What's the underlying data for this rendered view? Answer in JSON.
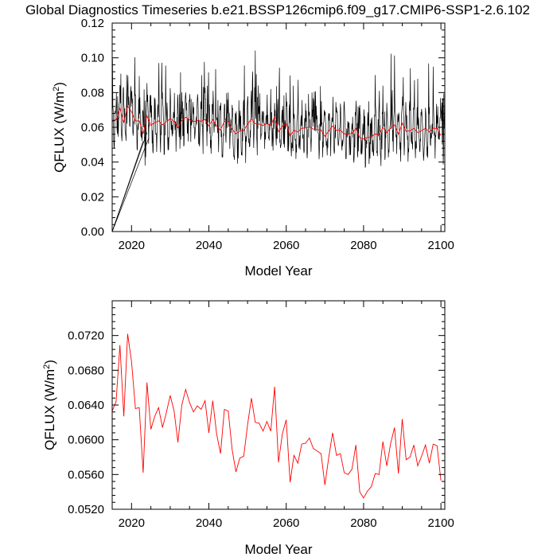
{
  "chart_data": {
    "title": "Global Diagnostics Timeseries b.e21.BSSP126cmip6.f09_g17.CMIP6-SSP1-2.6.102",
    "panels": [
      {
        "type": "line",
        "xlabel": "Model Year",
        "ylabel_main": "QFLUX (W/m",
        "ylabel_sup": "2",
        "ylabel_close": ")",
        "xlim": [
          2015,
          2101
        ],
        "ylim": [
          0.0,
          0.12
        ],
        "xticks": [
          2020,
          2040,
          2060,
          2080,
          2100
        ],
        "xtick_labels": [
          "2020",
          "2040",
          "2060",
          "2080",
          "2100"
        ],
        "yticks": [
          0.0,
          0.02,
          0.04,
          0.06,
          0.08,
          0.1,
          0.12
        ],
        "ytick_labels": [
          "0.00",
          "0.02",
          "0.04",
          "0.06",
          "0.08",
          "0.10",
          "0.12"
        ],
        "series": [
          {
            "role": "monthly",
            "color": "#000000",
            "monthly_mean_range": [
              0.034,
              0.106
            ],
            "note_artifact": "spurious lines from (2015, 0.0) to early-2020s values"
          },
          {
            "role": "annual",
            "color": "#ff0000"
          }
        ]
      },
      {
        "type": "line",
        "xlabel": "Model Year",
        "ylabel_main": "QFLUX (W/m",
        "ylabel_sup": "2",
        "ylabel_close": ")",
        "xlim": [
          2015,
          2101
        ],
        "ylim": [
          0.052,
          0.076
        ],
        "xticks": [
          2020,
          2040,
          2060,
          2080,
          2100
        ],
        "xtick_labels": [
          "2020",
          "2040",
          "2060",
          "2080",
          "2100"
        ],
        "yticks": [
          0.052,
          0.056,
          0.06,
          0.064,
          0.068,
          0.072
        ],
        "ytick_labels": [
          "0.0520",
          "0.0560",
          "0.0600",
          "0.0640",
          "0.0680",
          "0.0720"
        ],
        "series": [
          {
            "role": "annual",
            "color": "#ff0000",
            "x": [
              2015,
              2016,
              2017,
              2018,
              2019,
              2020,
              2021,
              2022,
              2023,
              2024,
              2025,
              2026,
              2027,
              2028,
              2029,
              2030,
              2031,
              2032,
              2033,
              2034,
              2035,
              2036,
              2037,
              2038,
              2039,
              2040,
              2041,
              2042,
              2043,
              2044,
              2045,
              2046,
              2047,
              2048,
              2049,
              2050,
              2051,
              2052,
              2053,
              2054,
              2055,
              2056,
              2057,
              2058,
              2059,
              2060,
              2061,
              2062,
              2063,
              2064,
              2065,
              2066,
              2067,
              2068,
              2069,
              2070,
              2071,
              2072,
              2073,
              2074,
              2075,
              2076,
              2077,
              2078,
              2079,
              2080,
              2081,
              2082,
              2083,
              2084,
              2085,
              2086,
              2087,
              2088,
              2089,
              2090,
              2091,
              2092,
              2093,
              2094,
              2095,
              2096,
              2097,
              2098,
              2099,
              2100
            ],
            "values": [
              0.0633,
              0.0644,
              0.0709,
              0.0627,
              0.0722,
              0.069,
              0.0636,
              0.0637,
              0.0562,
              0.0666,
              0.0612,
              0.0627,
              0.0637,
              0.0614,
              0.0631,
              0.0651,
              0.0633,
              0.0597,
              0.064,
              0.0658,
              0.0643,
              0.0632,
              0.0639,
              0.0635,
              0.0645,
              0.0608,
              0.0645,
              0.0607,
              0.0584,
              0.0635,
              0.0633,
              0.0589,
              0.0563,
              0.0579,
              0.0581,
              0.0617,
              0.0648,
              0.062,
              0.0619,
              0.061,
              0.0621,
              0.061,
              0.0661,
              0.0574,
              0.0607,
              0.0623,
              0.0551,
              0.0582,
              0.0573,
              0.0595,
              0.0596,
              0.0602,
              0.059,
              0.0587,
              0.0584,
              0.0548,
              0.058,
              0.0608,
              0.0582,
              0.0584,
              0.0562,
              0.056,
              0.0566,
              0.0594,
              0.054,
              0.0533,
              0.0541,
              0.0546,
              0.0561,
              0.056,
              0.0598,
              0.057,
              0.0596,
              0.0614,
              0.0561,
              0.0624,
              0.0577,
              0.058,
              0.0594,
              0.057,
              0.0581,
              0.0594,
              0.0573,
              0.0595,
              0.0593,
              0.0553
            ]
          }
        ]
      }
    ]
  }
}
